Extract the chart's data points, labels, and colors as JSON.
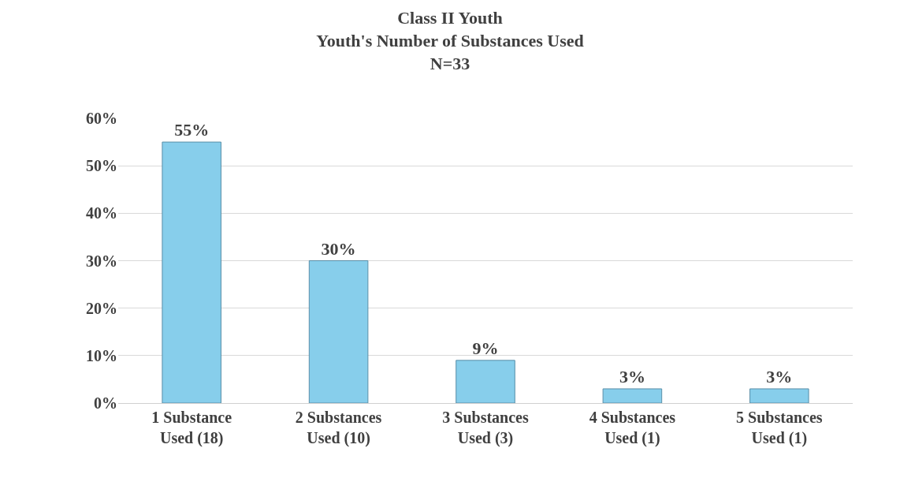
{
  "chart_data": {
    "type": "bar",
    "title": "Class II Youth\nYouth's Number of Substances Used\nN=33",
    "categories": [
      "1 Substance Used (18)",
      "2 Substances Used (10)",
      "3 Substances Used (3)",
      "4 Substances Used (1)",
      "5 Substances Used (1)"
    ],
    "values": [
      55,
      30,
      9,
      3,
      3
    ],
    "value_labels": [
      "55%",
      "30%",
      "9%",
      "3%",
      "3%"
    ],
    "color": "#87ceeb",
    "ylim": [
      0,
      60
    ],
    "yticks": [
      {
        "value": 0,
        "label": "0%"
      },
      {
        "value": 10,
        "label": "10%"
      },
      {
        "value": 20,
        "label": "20%"
      },
      {
        "value": 30,
        "label": "30%"
      },
      {
        "value": 40,
        "label": "40%"
      },
      {
        "value": 50,
        "label": "50%"
      },
      {
        "value": 60,
        "label": "60%"
      }
    ],
    "grid": "y"
  }
}
